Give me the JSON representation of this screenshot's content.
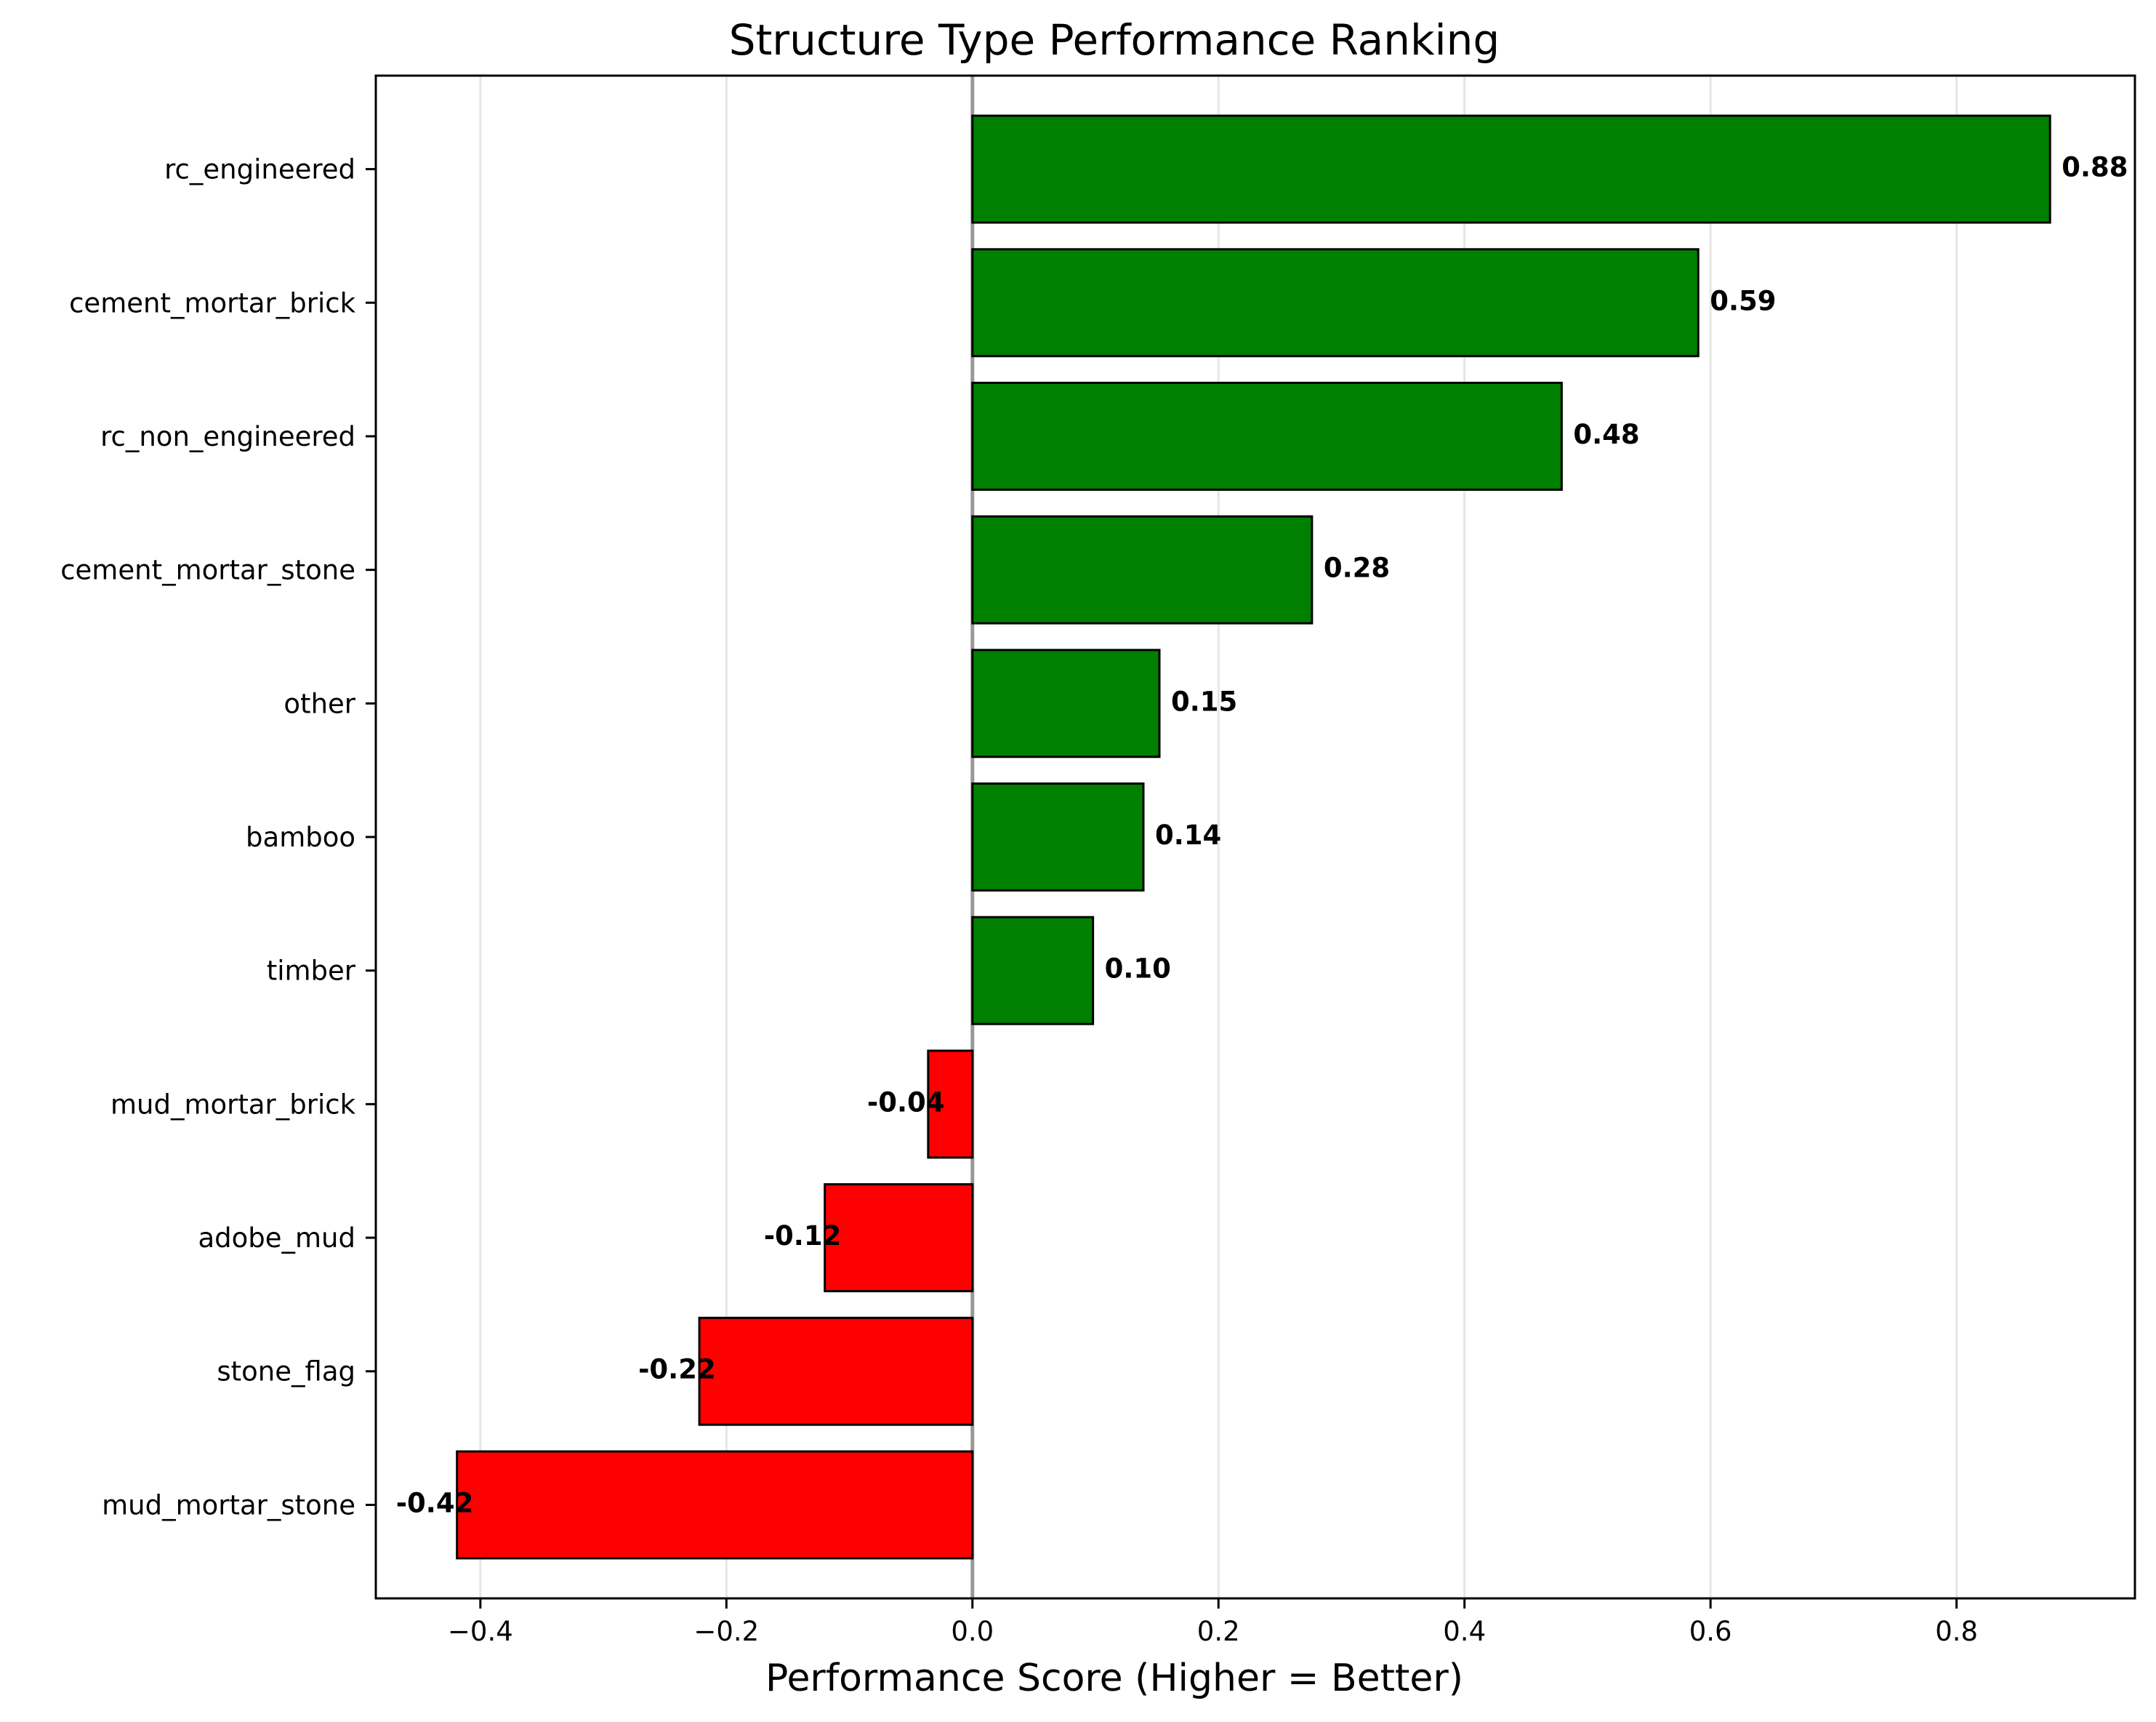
{
  "chart_data": {
    "type": "bar",
    "orientation": "horizontal",
    "title": "Structure Type Performance Ranking",
    "xlabel": "Performance Score (Higher = Better)",
    "ylabel": "",
    "xlim": [
      -0.485,
      0.945
    ],
    "xticks": [
      -0.4,
      -0.2,
      0.0,
      0.2,
      0.4,
      0.6,
      0.8
    ],
    "xtick_labels": [
      "−0.4",
      "−0.2",
      "0.0",
      "0.2",
      "0.4",
      "0.6",
      "0.8"
    ],
    "grid": "x-axis vertical lines",
    "categories": [
      "rc_engineered",
      "cement_mortar_brick",
      "rc_non_engineered",
      "cement_mortar_stone",
      "other",
      "bamboo",
      "timber",
      "mud_mortar_brick",
      "adobe_mud",
      "stone_flag",
      "mud_mortar_stone"
    ],
    "values": [
      0.876,
      0.59,
      0.479,
      0.276,
      0.152,
      0.139,
      0.098,
      -0.036,
      -0.12,
      -0.222,
      -0.419
    ],
    "data_labels": [
      "0.88",
      "0.59",
      "0.48",
      "0.28",
      "0.15",
      "0.14",
      "0.10",
      "-0.04",
      "-0.12",
      "-0.22",
      "-0.42"
    ],
    "colors": {
      "positive": "#008000",
      "negative": "#ff0000",
      "edge": "#000000",
      "zero_line": "#999999",
      "grid": "#e6e6e6"
    }
  }
}
